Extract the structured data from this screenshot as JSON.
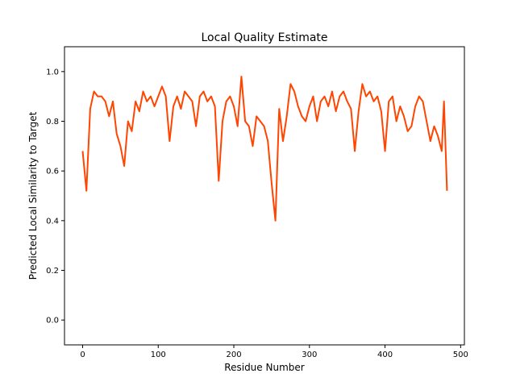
{
  "chart_data": {
    "type": "line",
    "title": "Local Quality Estimate",
    "x_label": "Residue Number",
    "y_label": "Predicted Local Similarity to Target",
    "x": [
      0,
      5,
      10,
      15,
      20,
      25,
      30,
      35,
      40,
      45,
      50,
      55,
      60,
      65,
      70,
      75,
      80,
      85,
      90,
      95,
      100,
      105,
      110,
      115,
      120,
      125,
      130,
      135,
      140,
      145,
      150,
      155,
      160,
      165,
      170,
      175,
      180,
      185,
      190,
      195,
      200,
      205,
      210,
      215,
      220,
      225,
      230,
      235,
      240,
      245,
      250,
      255,
      260,
      265,
      270,
      275,
      280,
      285,
      290,
      295,
      300,
      305,
      310,
      315,
      320,
      325,
      330,
      335,
      340,
      345,
      350,
      355,
      360,
      365,
      370,
      375,
      380,
      385,
      390,
      395,
      400,
      405,
      410,
      415,
      420,
      425,
      430,
      435,
      440,
      445,
      450,
      455,
      460,
      465,
      470,
      475,
      478,
      482
    ],
    "series": [
      {
        "color": "#ff4500",
        "values": [
          0.68,
          0.52,
          0.85,
          0.92,
          0.9,
          0.9,
          0.88,
          0.82,
          0.88,
          0.75,
          0.7,
          0.62,
          0.8,
          0.76,
          0.88,
          0.84,
          0.92,
          0.88,
          0.9,
          0.86,
          0.9,
          0.94,
          0.9,
          0.72,
          0.86,
          0.9,
          0.85,
          0.92,
          0.9,
          0.88,
          0.78,
          0.9,
          0.92,
          0.88,
          0.9,
          0.86,
          0.56,
          0.8,
          0.88,
          0.9,
          0.86,
          0.78,
          0.98,
          0.8,
          0.78,
          0.7,
          0.82,
          0.8,
          0.78,
          0.72,
          0.55,
          0.4,
          0.85,
          0.72,
          0.82,
          0.95,
          0.92,
          0.86,
          0.82,
          0.8,
          0.86,
          0.9,
          0.8,
          0.88,
          0.9,
          0.86,
          0.92,
          0.84,
          0.9,
          0.92,
          0.88,
          0.85,
          0.68,
          0.84,
          0.95,
          0.9,
          0.92,
          0.88,
          0.9,
          0.84,
          0.68,
          0.88,
          0.9,
          0.8,
          0.86,
          0.82,
          0.76,
          0.78,
          0.86,
          0.9,
          0.88,
          0.8,
          0.72,
          0.78,
          0.74,
          0.68,
          0.88,
          0.52
        ]
      }
    ],
    "xlim": [
      -24,
      505
    ],
    "ylim": [
      -0.1,
      1.1
    ],
    "xticks": [
      0,
      100,
      200,
      300,
      400,
      500
    ],
    "yticks": [
      {
        "value": 0,
        "label": "0.0"
      },
      0.2,
      0.4,
      0.6,
      0.8,
      {
        "value": 1,
        "label": "1.0"
      }
    ],
    "grid": false
  }
}
